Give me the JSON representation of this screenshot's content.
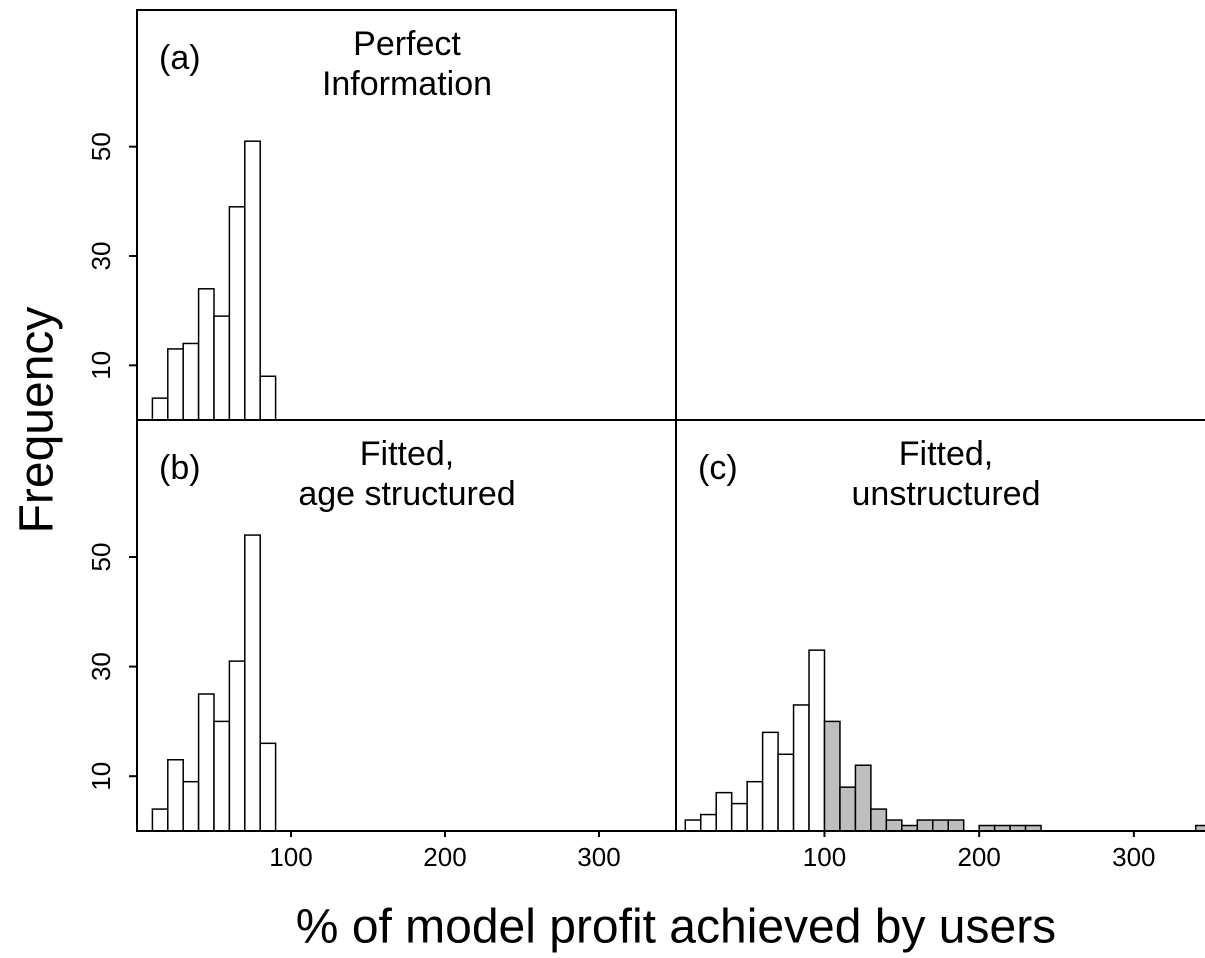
{
  "ylabel": "Frequency",
  "xlabel": "% of model profit achieved by users",
  "chart_data": [
    {
      "type": "histogram",
      "label": "(a)",
      "title": [
        "Perfect",
        "Information"
      ],
      "xlim": [
        0,
        350
      ],
      "ylim": [
        0,
        75
      ],
      "yticks": [
        10,
        30,
        50
      ],
      "series": [
        {
          "color": "#ffffff",
          "bins": [
            10,
            20,
            30,
            40,
            50,
            60,
            70,
            80,
            90
          ],
          "values": [
            4,
            13,
            14,
            24,
            19,
            39,
            51,
            8
          ]
        }
      ]
    },
    {
      "type": "histogram",
      "label": "(b)",
      "title": [
        "Fitted,",
        "age structured"
      ],
      "xlim": [
        0,
        350
      ],
      "ylim": [
        0,
        75
      ],
      "xticks": [
        100,
        200,
        300
      ],
      "yticks": [
        10,
        30,
        50
      ],
      "series": [
        {
          "color": "#ffffff",
          "bins": [
            10,
            20,
            30,
            40,
            50,
            60,
            70,
            80,
            90
          ],
          "values": [
            4,
            13,
            9,
            25,
            20,
            31,
            54,
            16
          ]
        }
      ]
    },
    {
      "type": "histogram",
      "label": "(c)",
      "title": [
        "Fitted,",
        "unstructured"
      ],
      "xlim": [
        4,
        346
      ],
      "ylim": [
        0,
        75
      ],
      "xticks": [
        100,
        200,
        300
      ],
      "series": [
        {
          "color": "#ffffff",
          "bins": [
            10,
            20,
            30,
            40,
            50,
            60,
            70,
            80,
            90,
            100
          ],
          "values": [
            2,
            3,
            7,
            5,
            9,
            18,
            14,
            23,
            33
          ]
        },
        {
          "color": "#bebebe",
          "bins": [
            100,
            110,
            120,
            130,
            140,
            150,
            160,
            170,
            180,
            190,
            200,
            210,
            220,
            230,
            240,
            250,
            260,
            270,
            280,
            290,
            300,
            310,
            320,
            330,
            340,
            350
          ],
          "values": [
            20,
            8,
            12,
            4,
            2,
            1,
            2,
            2,
            2,
            0,
            1,
            1,
            1,
            1,
            0,
            0,
            0,
            0,
            0,
            0,
            0,
            0,
            0,
            0,
            1
          ]
        }
      ]
    }
  ]
}
